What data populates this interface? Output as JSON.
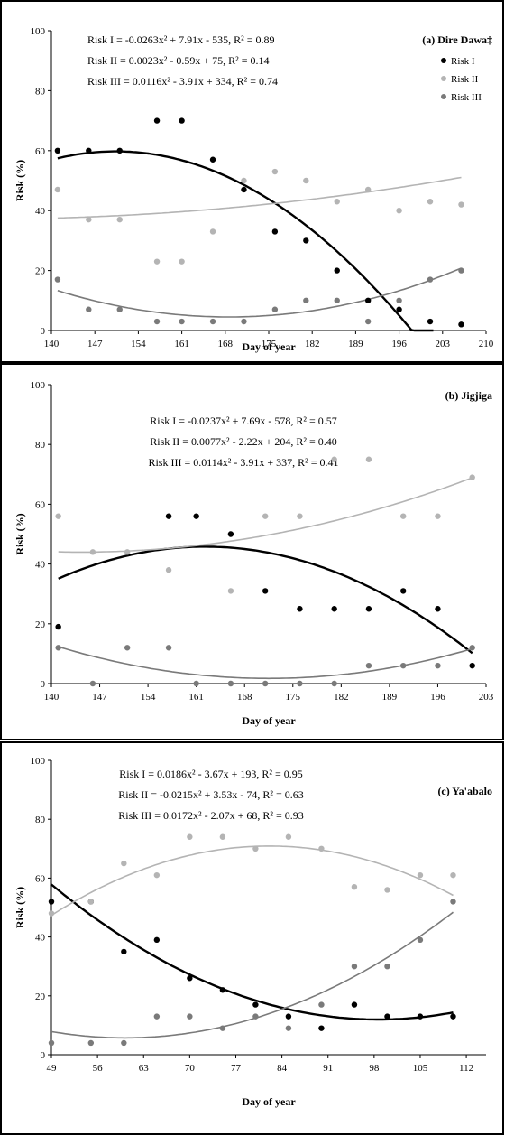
{
  "chart_data": [
    {
      "type": "scatter",
      "title": "(a) Dire Dawa‡",
      "xlabel": "Day of year",
      "ylabel": "Risk (%)",
      "xlim": [
        140,
        210
      ],
      "ylim": [
        0,
        100
      ],
      "xticks": [
        140,
        147,
        154,
        161,
        168,
        175,
        182,
        189,
        196,
        203,
        210
      ],
      "yticks": [
        0,
        20,
        40,
        60,
        80,
        100
      ],
      "legend_position": "top-right",
      "equations": [
        "Risk I = -0.0263x² + 7.91x - 535, R² = 0.89",
        "Risk II = 0.0023x² - 0.59x + 75, R² = 0.14",
        "Risk III = 0.0116x² - 3.91x + 334, R² = 0.74"
      ],
      "series": [
        {
          "name": "Risk I",
          "color": "#000000",
          "x": [
            141,
            146,
            151,
            157,
            161,
            166,
            171,
            176,
            181,
            186,
            191,
            196,
            201,
            206
          ],
          "y": [
            60,
            60,
            60,
            70,
            70,
            57,
            47,
            33,
            30,
            20,
            10,
            7,
            3,
            2
          ],
          "fit": [
            -0.0263,
            7.91,
            -535
          ],
          "fit_range": [
            141,
            201.5
          ]
        },
        {
          "name": "Risk II",
          "color": "#b4b4b4",
          "x": [
            141,
            146,
            151,
            157,
            161,
            166,
            171,
            176,
            181,
            186,
            191,
            196,
            201,
            206
          ],
          "y": [
            47,
            37,
            37,
            23,
            23,
            33,
            50,
            53,
            50,
            43,
            47,
            40,
            43,
            42
          ],
          "fit": [
            0.0023,
            -0.59,
            75
          ],
          "fit_range": [
            141,
            206
          ]
        },
        {
          "name": "Risk III",
          "color": "#7a7a7a",
          "x": [
            141,
            146,
            151,
            157,
            161,
            166,
            171,
            176,
            181,
            186,
            191,
            196,
            201,
            206
          ],
          "y": [
            17,
            7,
            7,
            3,
            3,
            3,
            3,
            7,
            10,
            10,
            3,
            10,
            17,
            20
          ],
          "fit": [
            0.0116,
            -3.91,
            334
          ],
          "fit_range": [
            141,
            206
          ]
        }
      ]
    },
    {
      "type": "scatter",
      "title": "(b) Jigjiga",
      "xlabel": "Day of year",
      "ylabel": "Risk (%)",
      "xlim": [
        140,
        203
      ],
      "ylim": [
        0,
        100
      ],
      "xticks": [
        140,
        147,
        154,
        161,
        168,
        175,
        182,
        189,
        196,
        203
      ],
      "yticks": [
        0,
        20,
        40,
        60,
        80,
        100
      ],
      "equations": [
        "Risk I = -0.0237x² + 7.69x - 578, R² = 0.57",
        "Risk II = 0.0077x² - 2.22x + 204, R² = 0.40",
        "Risk III = 0.0114x² - 3.91x + 337, R² = 0.41"
      ],
      "series": [
        {
          "name": "Risk I",
          "color": "#000000",
          "x": [
            141,
            157,
            161,
            166,
            171,
            176,
            181,
            186,
            191,
            196,
            201
          ],
          "y": [
            19,
            56,
            56,
            50,
            31,
            25,
            25,
            25,
            31,
            25,
            6
          ],
          "fit": [
            -0.0237,
            7.69,
            -578
          ],
          "fit_range": [
            141,
            201
          ]
        },
        {
          "name": "Risk II",
          "color": "#b4b4b4",
          "x": [
            141,
            146,
            151,
            157,
            166,
            171,
            176,
            181,
            186,
            191,
            196,
            201
          ],
          "y": [
            56,
            44,
            44,
            38,
            31,
            56,
            56,
            75,
            75,
            56,
            56,
            69
          ],
          "fit": [
            0.0077,
            -2.22,
            204
          ],
          "fit_range": [
            141,
            201
          ]
        },
        {
          "name": "Risk III",
          "color": "#7a7a7a",
          "x": [
            141,
            146,
            151,
            157,
            161,
            166,
            171,
            176,
            181,
            186,
            191,
            196,
            201
          ],
          "y": [
            12,
            0,
            12,
            12,
            0,
            0,
            0,
            0,
            0,
            6,
            6,
            6,
            12
          ],
          "fit": [
            0.0114,
            -3.91,
            337
          ],
          "fit_range": [
            141,
            201
          ]
        }
      ]
    },
    {
      "type": "scatter",
      "title": "(c) Ya'abalo",
      "xlabel": "Day of year",
      "ylabel": "Risk (%)",
      "xlim": [
        49,
        115
      ],
      "ylim": [
        0,
        100
      ],
      "xticks": [
        49,
        56,
        63,
        70,
        77,
        84,
        91,
        98,
        105,
        112
      ],
      "yticks": [
        0,
        20,
        40,
        60,
        80,
        100
      ],
      "equations": [
        "Risk I = 0.0186x² - 3.67x + 193, R² = 0.95",
        "Risk II = -0.0215x² + 3.53x - 74, R² = 0.63",
        "Risk III = 0.0172x² - 2.07x + 68, R² = 0.93"
      ],
      "series": [
        {
          "name": "Risk I",
          "color": "#000000",
          "x": [
            49,
            55,
            60,
            65,
            70,
            75,
            80,
            85,
            90,
            95,
            100,
            105,
            110
          ],
          "y": [
            52,
            52,
            35,
            39,
            26,
            22,
            17,
            13,
            9,
            17,
            13,
            13,
            13
          ],
          "fit": [
            0.0186,
            -3.67,
            193
          ],
          "fit_range": [
            49,
            110
          ]
        },
        {
          "name": "Risk II",
          "color": "#b4b4b4",
          "x": [
            49,
            55,
            60,
            65,
            70,
            75,
            80,
            85,
            90,
            95,
            100,
            105,
            110
          ],
          "y": [
            48,
            52,
            65,
            61,
            74,
            74,
            70,
            74,
            70,
            57,
            56,
            61,
            61
          ],
          "fit": [
            -0.0215,
            3.53,
            -74
          ],
          "fit_range": [
            49,
            110
          ]
        },
        {
          "name": "Risk III",
          "color": "#7a7a7a",
          "x": [
            49,
            55,
            60,
            65,
            70,
            75,
            80,
            85,
            90,
            95,
            100,
            105,
            110
          ],
          "y": [
            4,
            4,
            4,
            13,
            13,
            9,
            13,
            9,
            17,
            30,
            30,
            39,
            52
          ],
          "fit": [
            0.0172,
            -2.07,
            68
          ],
          "fit_range": [
            49,
            110
          ]
        }
      ]
    }
  ]
}
